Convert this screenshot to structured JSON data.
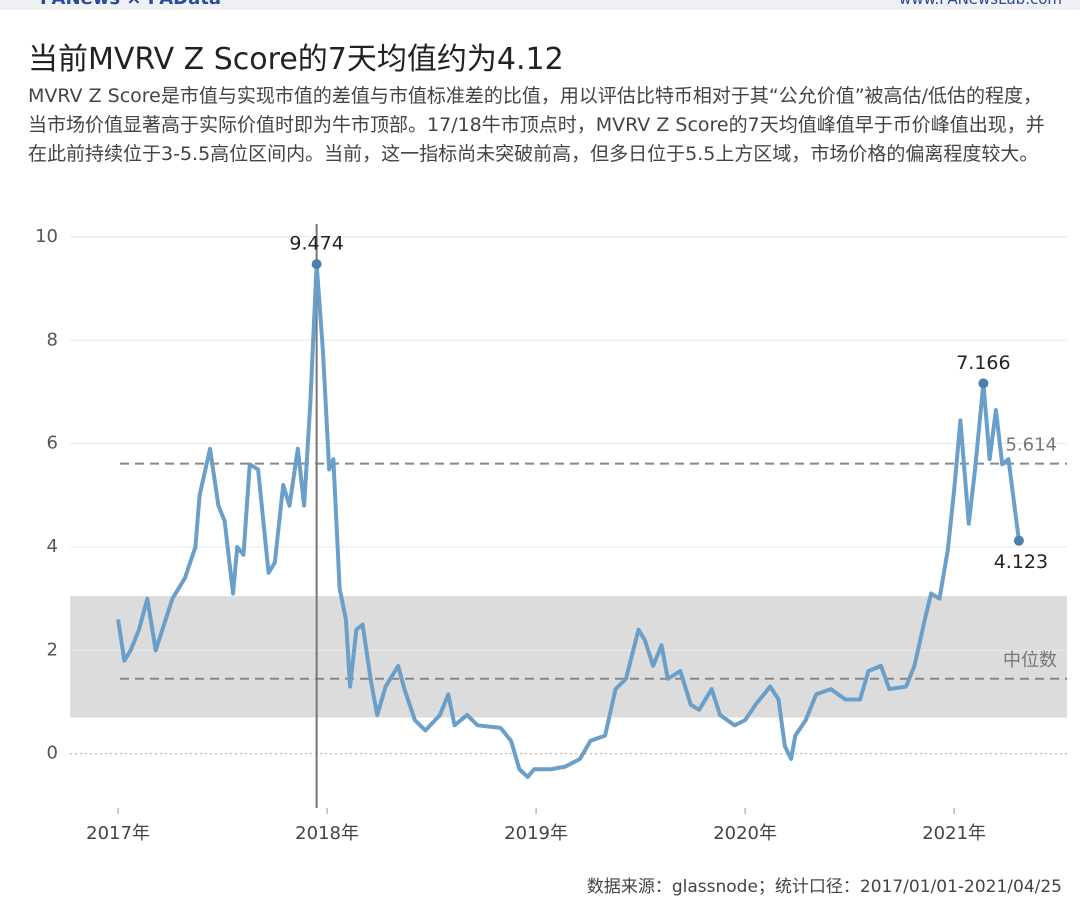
{
  "header": {
    "brand": "PANews × PAData",
    "site": "www.PANewsLab.com"
  },
  "chart_data": {
    "type": "line",
    "title": "当前MVRV Z Score的7天均值约为4.12",
    "subtitle": "MVRV Z Score是市值与实现市值的差值与市值标准差的比值，用以评估比特币相对于其“公允价值”被高估/低估的程度，当市场价值显著高于实际价值时即为牛市顶部。17/18牛市顶点时，MVRV Z Score的7天均值峰值早于币价峰值出现，并在此前持续位于3-5.5高位区间内。当前，这一指标尚未突破前高，但多日位于5.5上方区域，市场价格的偏离程度较大。",
    "source": "数据来源：glassnode；统计口径：2017/01/01-2021/04/25",
    "xlim": [
      2016.77,
      2021.54
    ],
    "xticks": [
      {
        "value": 2017,
        "label": "2017年"
      },
      {
        "value": 2018,
        "label": "2018年"
      },
      {
        "value": 2019,
        "label": "2019年"
      },
      {
        "value": 2020,
        "label": "2020年"
      },
      {
        "value": 2021,
        "label": "2021年"
      }
    ],
    "ylim": [
      -1.05,
      10.25
    ],
    "yticks": [
      0,
      2,
      4,
      6,
      8,
      10
    ],
    "grid": true,
    "band": [
      0.7,
      3.05
    ],
    "vline": 2017.95,
    "reference_lines": [
      {
        "value": 5.614,
        "label": "5.614"
      },
      {
        "value": 1.45,
        "label": "中位数"
      }
    ],
    "annotations": [
      {
        "x": 2017.95,
        "y": 9.474,
        "label": "9.474"
      },
      {
        "x": 2021.14,
        "y": 7.166,
        "label": "7.166"
      },
      {
        "x": 2021.31,
        "y": 4.123,
        "label": "4.123"
      }
    ],
    "series": [
      {
        "name": "MVRV Z Score 7天均值",
        "color": "#6a9fca",
        "x": [
          2017.0,
          2017.03,
          2017.06,
          2017.1,
          2017.14,
          2017.18,
          2017.22,
          2017.26,
          2017.32,
          2017.37,
          2017.39,
          2017.44,
          2017.48,
          2017.51,
          2017.55,
          2017.57,
          2017.6,
          2017.63,
          2017.67,
          2017.72,
          2017.75,
          2017.79,
          2017.82,
          2017.86,
          2017.89,
          2017.92,
          2017.95,
          2017.98,
          2018.01,
          2018.03,
          2018.06,
          2018.09,
          2018.11,
          2018.14,
          2018.17,
          2018.21,
          2018.24,
          2018.28,
          2018.34,
          2018.37,
          2018.42,
          2018.47,
          2018.54,
          2018.58,
          2018.61,
          2018.67,
          2018.72,
          2018.83,
          2018.88,
          2018.92,
          2018.96,
          2018.99,
          2019.07,
          2019.14,
          2019.21,
          2019.26,
          2019.33,
          2019.38,
          2019.43,
          2019.49,
          2019.52,
          2019.56,
          2019.6,
          2019.63,
          2019.69,
          2019.74,
          2019.78,
          2019.84,
          2019.88,
          2019.95,
          2020.0,
          2020.05,
          2020.12,
          2020.16,
          2020.19,
          2020.22,
          2020.24,
          2020.29,
          2020.34,
          2020.41,
          2020.48,
          2020.55,
          2020.59,
          2020.65,
          2020.69,
          2020.77,
          2020.81,
          2020.86,
          2020.89,
          2020.93,
          2020.97,
          2021.0,
          2021.03,
          2021.07,
          2021.1,
          2021.14,
          2021.17,
          2021.2,
          2021.23,
          2021.26,
          2021.31
        ],
        "values": [
          2.6,
          1.8,
          2.0,
          2.4,
          3.0,
          2.0,
          2.5,
          3.0,
          3.4,
          4.0,
          5.0,
          5.9,
          4.8,
          4.5,
          3.1,
          4.0,
          3.85,
          5.6,
          5.5,
          3.5,
          3.7,
          5.2,
          4.8,
          5.9,
          4.8,
          6.8,
          9.474,
          7.8,
          5.5,
          5.7,
          3.2,
          2.6,
          1.3,
          2.4,
          2.5,
          1.4,
          0.75,
          1.3,
          1.7,
          1.25,
          0.65,
          0.45,
          0.75,
          1.15,
          0.55,
          0.75,
          0.55,
          0.5,
          0.25,
          -0.3,
          -0.45,
          -0.3,
          -0.3,
          -0.25,
          -0.1,
          0.25,
          0.35,
          1.25,
          1.45,
          2.4,
          2.2,
          1.7,
          2.1,
          1.45,
          1.6,
          0.95,
          0.85,
          1.25,
          0.75,
          0.55,
          0.65,
          0.95,
          1.3,
          1.05,
          0.15,
          -0.1,
          0.35,
          0.65,
          1.15,
          1.25,
          1.05,
          1.05,
          1.6,
          1.7,
          1.25,
          1.3,
          1.7,
          2.6,
          3.1,
          3.0,
          3.95,
          5.1,
          6.45,
          4.45,
          5.5,
          7.166,
          5.7,
          6.65,
          5.6,
          5.7,
          4.123
        ]
      }
    ]
  }
}
